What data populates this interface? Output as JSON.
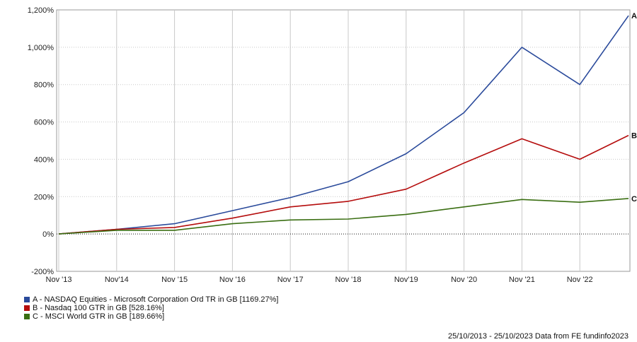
{
  "chart_data": {
    "type": "line",
    "x": [
      "Nov '13",
      "Nov '14",
      "Nov '15",
      "Nov '16",
      "Nov '17",
      "Nov '18",
      "Nov '19",
      "Nov '20",
      "Nov '21",
      "Nov '22",
      "Oct '23"
    ],
    "x_tick_labels": [
      "Nov '13",
      "Nov'14",
      "Nov '15",
      "Nov '16",
      "Nov '17",
      "Nov '18",
      "Nov'19",
      "Nov '20",
      "Nov '21",
      "Nov '22"
    ],
    "y_tick_labels": [
      "1,200%",
      "1,000%",
      "800%",
      "600%",
      "400%",
      "200%",
      "0%",
      "-200%"
    ],
    "y_ticks": [
      1200,
      1000,
      800,
      600,
      400,
      200,
      0,
      -200
    ],
    "ylim": [
      -200,
      1200
    ],
    "grid": true,
    "legend_position": "bottom-left",
    "series": [
      {
        "name": "A - NASDAQ Equities - Microsoft Corporation Ord TR in GB [1169.27%]",
        "end_label": "A",
        "color": "#2a4a9b",
        "values": [
          0,
          25,
          55,
          125,
          195,
          280,
          430,
          650,
          1000,
          800,
          1169
        ]
      },
      {
        "name": "B - Nasdaq 100 GTR in GB [528.16%]",
        "end_label": "B",
        "color": "#b50d0d",
        "values": [
          0,
          25,
          35,
          85,
          145,
          175,
          240,
          380,
          510,
          400,
          528
        ]
      },
      {
        "name": "C - MSCI World GTR in GB [189.66%]",
        "end_label": "C",
        "color": "#3a6e12",
        "values": [
          0,
          20,
          20,
          55,
          75,
          80,
          105,
          145,
          185,
          170,
          190
        ]
      }
    ]
  },
  "footer": {
    "text": "25/10/2013 - 25/10/2023 Data from FE fundinfo2023"
  }
}
